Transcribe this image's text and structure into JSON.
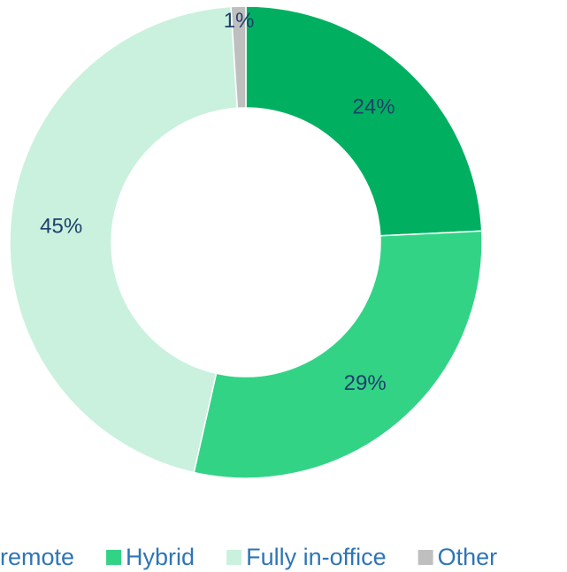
{
  "chart_data": {
    "type": "pie",
    "categories": [
      "remote",
      "Hybrid",
      "Fully in-office",
      "Other"
    ],
    "values": [
      24,
      29,
      45,
      1
    ],
    "value_labels": [
      "24%",
      "29%",
      "45%",
      "1%"
    ],
    "colors": [
      "#00b060",
      "#33d386",
      "#c9f1de",
      "#bfbfbf"
    ],
    "legend": "bottom"
  }
}
